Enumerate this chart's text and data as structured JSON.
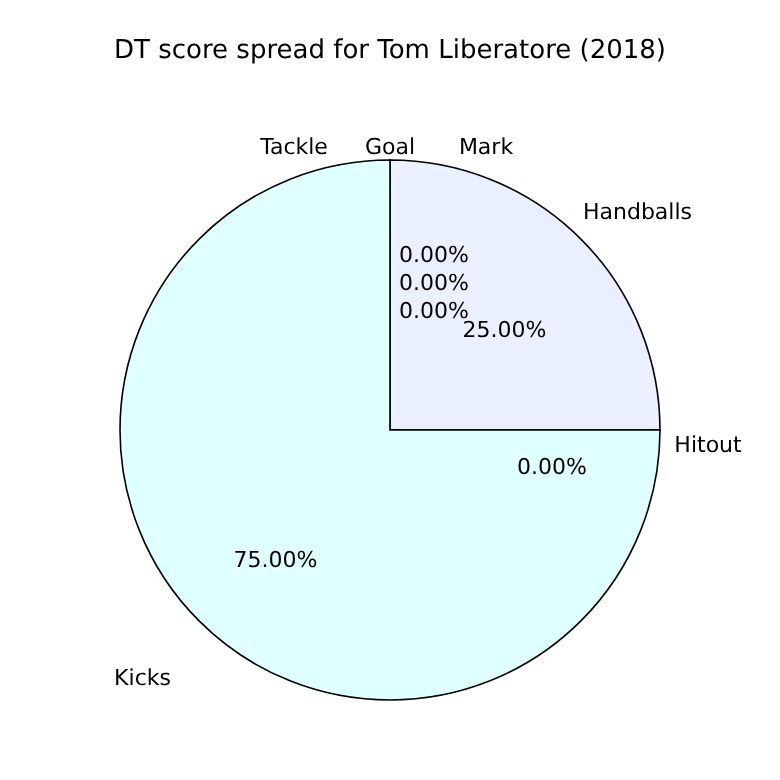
{
  "chart_data": {
    "type": "pie",
    "title": "DT score spread for Tom Liberatore (2018)",
    "categories": [
      "Kicks",
      "Hitout",
      "Handballs",
      "Mark",
      "Goal",
      "Tackle"
    ],
    "values": [
      75,
      0,
      25,
      0,
      0,
      0
    ],
    "colors": [
      "#e0ffff",
      "#f0f8ff",
      "#eaf0ff",
      "#f5f5dc",
      "#fff8dc",
      "#faebd7"
    ],
    "value_labels": [
      "75.00%",
      "0.00%",
      "25.00%",
      "0.00%",
      "0.00%",
      "0.00%"
    ]
  }
}
